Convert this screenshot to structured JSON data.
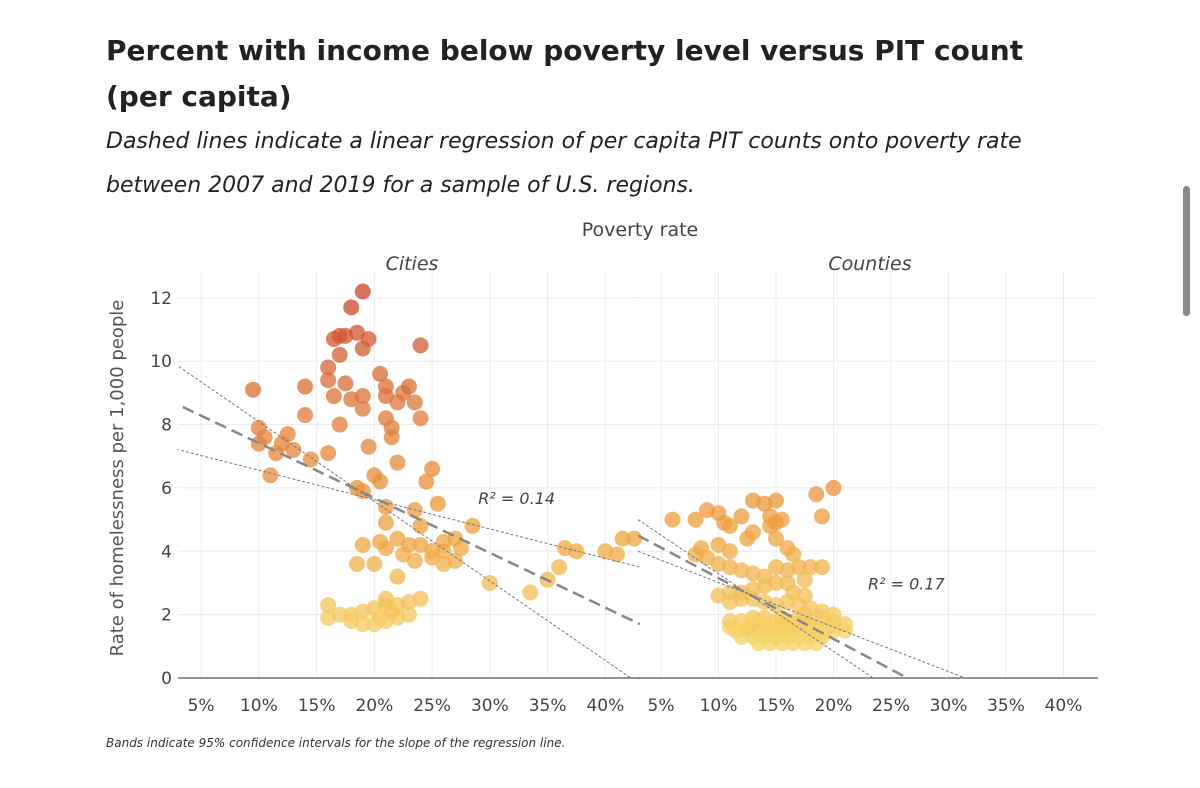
{
  "title": "Percent with income below poverty level versus PIT count (per capita)",
  "subtitle": "Dashed lines indicate a linear regression of per capita PIT counts onto poverty rate between 2007 and 2019 for a sample of U.S. regions.",
  "footnote": "Bands indicate 95% confidence intervals for the slope of the regression line.",
  "chart_data": {
    "type": "scatter",
    "top_label": "Poverty rate",
    "ylabel": "Rate of homelessness per 1,000 people",
    "ylim": [
      0,
      12.5
    ],
    "xlim": [
      3,
      43
    ],
    "y_ticks": [
      0,
      2,
      4,
      6,
      8,
      10,
      12
    ],
    "x_ticks": [
      5,
      10,
      15,
      20,
      25,
      30,
      35,
      40
    ],
    "x_tick_labels": [
      "5%",
      "10%",
      "15%",
      "20%",
      "25%",
      "30%",
      "35%",
      "40%"
    ],
    "grid": true,
    "color_scale": [
      "#f6d66a",
      "#eea03c",
      "#e07a3a",
      "#c8462a"
    ],
    "panels": [
      {
        "name": "Cities",
        "r2_label": "R² = 0.14",
        "r2_at": [
          29,
          5.5
        ],
        "regression": {
          "x0": 2,
          "y0": 8.8,
          "x1": 43,
          "y1": 1.7
        },
        "ci_low": {
          "x0": 2,
          "y0": 7.3,
          "x1": 43,
          "y1": 3.5
        },
        "ci_high": {
          "x0": 2,
          "y0": 10.1,
          "x1": 43,
          "y1": -0.2
        },
        "points": [
          [
            19,
            12.2
          ],
          [
            18,
            11.7
          ],
          [
            17.5,
            10.8
          ],
          [
            16.5,
            10.7
          ],
          [
            17,
            10.8
          ],
          [
            18.5,
            10.9
          ],
          [
            19.5,
            10.7
          ],
          [
            24,
            10.5
          ],
          [
            19,
            10.4
          ],
          [
            17,
            10.2
          ],
          [
            16,
            9.8
          ],
          [
            20.5,
            9.6
          ],
          [
            16,
            9.4
          ],
          [
            17.5,
            9.3
          ],
          [
            14,
            9.2
          ],
          [
            9.5,
            9.1
          ],
          [
            21,
            9.2
          ],
          [
            22.5,
            9.0
          ],
          [
            23,
            9.2
          ],
          [
            16.5,
            8.9
          ],
          [
            18,
            8.8
          ],
          [
            19,
            8.9
          ],
          [
            21,
            8.9
          ],
          [
            22,
            8.7
          ],
          [
            23.5,
            8.7
          ],
          [
            19,
            8.5
          ],
          [
            14,
            8.3
          ],
          [
            21,
            8.2
          ],
          [
            24,
            8.2
          ],
          [
            17,
            8.0
          ],
          [
            21.5,
            7.9
          ],
          [
            10,
            7.9
          ],
          [
            10.5,
            7.6
          ],
          [
            12.5,
            7.7
          ],
          [
            21.5,
            7.6
          ],
          [
            10,
            7.4
          ],
          [
            12,
            7.4
          ],
          [
            13,
            7.2
          ],
          [
            11.5,
            7.1
          ],
          [
            16,
            7.1
          ],
          [
            14.5,
            6.9
          ],
          [
            19.5,
            7.3
          ],
          [
            22,
            6.8
          ],
          [
            11,
            6.4
          ],
          [
            20,
            6.4
          ],
          [
            20.5,
            6.2
          ],
          [
            25,
            6.6
          ],
          [
            18.5,
            6.0
          ],
          [
            19,
            5.9
          ],
          [
            24.5,
            6.2
          ],
          [
            25.5,
            5.5
          ],
          [
            21,
            5.4
          ],
          [
            23.5,
            5.3
          ],
          [
            21,
            4.9
          ],
          [
            24,
            4.8
          ],
          [
            28.5,
            4.8
          ],
          [
            22,
            4.4
          ],
          [
            23,
            4.2
          ],
          [
            26,
            4.3
          ],
          [
            27,
            4.4
          ],
          [
            19,
            4.2
          ],
          [
            20.5,
            4.3
          ],
          [
            21,
            4.1
          ],
          [
            24,
            4.2
          ],
          [
            25,
            4.0
          ],
          [
            26,
            4.0
          ],
          [
            27.5,
            4.1
          ],
          [
            22.5,
            3.9
          ],
          [
            23.5,
            3.7
          ],
          [
            25,
            3.8
          ],
          [
            26,
            3.6
          ],
          [
            27,
            3.7
          ],
          [
            20,
            3.6
          ],
          [
            18.5,
            3.6
          ],
          [
            22,
            3.2
          ],
          [
            30,
            3.0
          ],
          [
            33.5,
            2.7
          ],
          [
            35,
            3.1
          ],
          [
            36,
            3.5
          ],
          [
            36.5,
            4.1
          ],
          [
            37.5,
            4.0
          ],
          [
            40,
            4.0
          ],
          [
            41.5,
            4.4
          ],
          [
            42.5,
            4.4
          ],
          [
            41,
            3.9
          ],
          [
            16,
            2.3
          ],
          [
            16,
            1.9
          ],
          [
            17,
            2.0
          ],
          [
            18,
            2.0
          ],
          [
            19,
            2.1
          ],
          [
            20,
            2.2
          ],
          [
            21,
            2.3
          ],
          [
            22,
            2.3
          ],
          [
            23,
            2.4
          ],
          [
            24,
            2.5
          ],
          [
            21,
            1.8
          ],
          [
            20,
            1.7
          ],
          [
            22,
            1.9
          ],
          [
            19,
            1.7
          ],
          [
            18,
            1.8
          ],
          [
            23,
            2.0
          ],
          [
            21.5,
            2.1
          ],
          [
            20.5,
            1.9
          ],
          [
            21,
            2.5
          ]
        ]
      },
      {
        "name": "Counties",
        "r2_label": "R² = 0.17",
        "r2_at": [
          23,
          2.8
        ],
        "regression": {
          "x0": 3,
          "y0": 4.5,
          "x1": 28.5,
          "y1": -0.4
        },
        "ci_low": {
          "x0": 3,
          "y0": 4.0,
          "x1": 35,
          "y1": -0.5
        },
        "ci_high": {
          "x0": 3,
          "y0": 5.0,
          "x1": 25.5,
          "y1": -0.5
        },
        "points": [
          [
            6,
            5.0
          ],
          [
            8,
            5.0
          ],
          [
            9,
            5.3
          ],
          [
            10,
            5.2
          ],
          [
            10.5,
            4.9
          ],
          [
            11,
            4.8
          ],
          [
            12,
            5.1
          ],
          [
            13,
            5.6
          ],
          [
            14,
            5.5
          ],
          [
            14.5,
            5.1
          ],
          [
            15,
            5.6
          ],
          [
            15.5,
            5.0
          ],
          [
            14.5,
            4.8
          ],
          [
            15,
            4.9
          ],
          [
            18.5,
            5.8
          ],
          [
            20,
            6.0
          ],
          [
            19,
            5.1
          ],
          [
            12.5,
            4.4
          ],
          [
            13,
            4.6
          ],
          [
            15,
            4.4
          ],
          [
            16,
            4.1
          ],
          [
            16.5,
            3.9
          ],
          [
            10,
            4.2
          ],
          [
            11,
            4.0
          ],
          [
            8,
            3.9
          ],
          [
            8.5,
            4.1
          ],
          [
            9,
            3.8
          ],
          [
            10,
            3.6
          ],
          [
            11,
            3.5
          ],
          [
            12,
            3.4
          ],
          [
            13,
            3.3
          ],
          [
            14,
            3.2
          ],
          [
            15,
            3.5
          ],
          [
            16,
            3.4
          ],
          [
            17,
            3.5
          ],
          [
            18,
            3.5
          ],
          [
            19,
            3.5
          ],
          [
            17.5,
            3.1
          ],
          [
            16,
            3.0
          ],
          [
            15,
            3.0
          ],
          [
            14,
            2.9
          ],
          [
            13,
            2.8
          ],
          [
            12,
            2.7
          ],
          [
            11,
            2.7
          ],
          [
            10,
            2.6
          ],
          [
            11,
            2.4
          ],
          [
            12,
            2.5
          ],
          [
            13,
            2.5
          ],
          [
            14,
            2.4
          ],
          [
            15,
            2.3
          ],
          [
            16,
            2.4
          ],
          [
            17,
            2.3
          ],
          [
            18,
            2.2
          ],
          [
            19,
            2.1
          ],
          [
            20,
            2.0
          ],
          [
            16.5,
            2.7
          ],
          [
            17.5,
            2.6
          ],
          [
            11,
            1.8
          ],
          [
            12,
            1.8
          ],
          [
            13,
            1.9
          ],
          [
            14,
            1.9
          ],
          [
            15,
            1.8
          ],
          [
            16,
            1.8
          ],
          [
            17,
            1.9
          ],
          [
            18,
            1.8
          ],
          [
            19,
            1.9
          ],
          [
            20,
            1.8
          ],
          [
            21,
            1.7
          ],
          [
            11.5,
            1.5
          ],
          [
            12.5,
            1.5
          ],
          [
            13.5,
            1.5
          ],
          [
            14.5,
            1.5
          ],
          [
            15.5,
            1.5
          ],
          [
            16.5,
            1.5
          ],
          [
            17.5,
            1.5
          ],
          [
            18.5,
            1.5
          ],
          [
            19.5,
            1.6
          ],
          [
            13,
            1.3
          ],
          [
            14,
            1.3
          ],
          [
            15,
            1.3
          ],
          [
            16,
            1.3
          ],
          [
            17,
            1.3
          ],
          [
            18,
            1.3
          ],
          [
            19,
            1.3
          ],
          [
            12,
            1.3
          ],
          [
            14.5,
            1.1
          ],
          [
            15.5,
            1.1
          ],
          [
            16.5,
            1.1
          ],
          [
            17.5,
            1.1
          ],
          [
            18.5,
            1.1
          ],
          [
            13.5,
            1.1
          ],
          [
            12.5,
            1.6
          ],
          [
            14,
            1.7
          ],
          [
            16,
            1.6
          ],
          [
            18,
            1.6
          ],
          [
            20,
            1.5
          ],
          [
            21,
            1.5
          ],
          [
            15,
            1.6
          ],
          [
            17,
            1.7
          ],
          [
            19,
            1.4
          ],
          [
            13,
            1.7
          ],
          [
            11,
            1.6
          ],
          [
            15.5,
            1.9
          ],
          [
            17.5,
            2.0
          ]
        ]
      }
    ]
  }
}
